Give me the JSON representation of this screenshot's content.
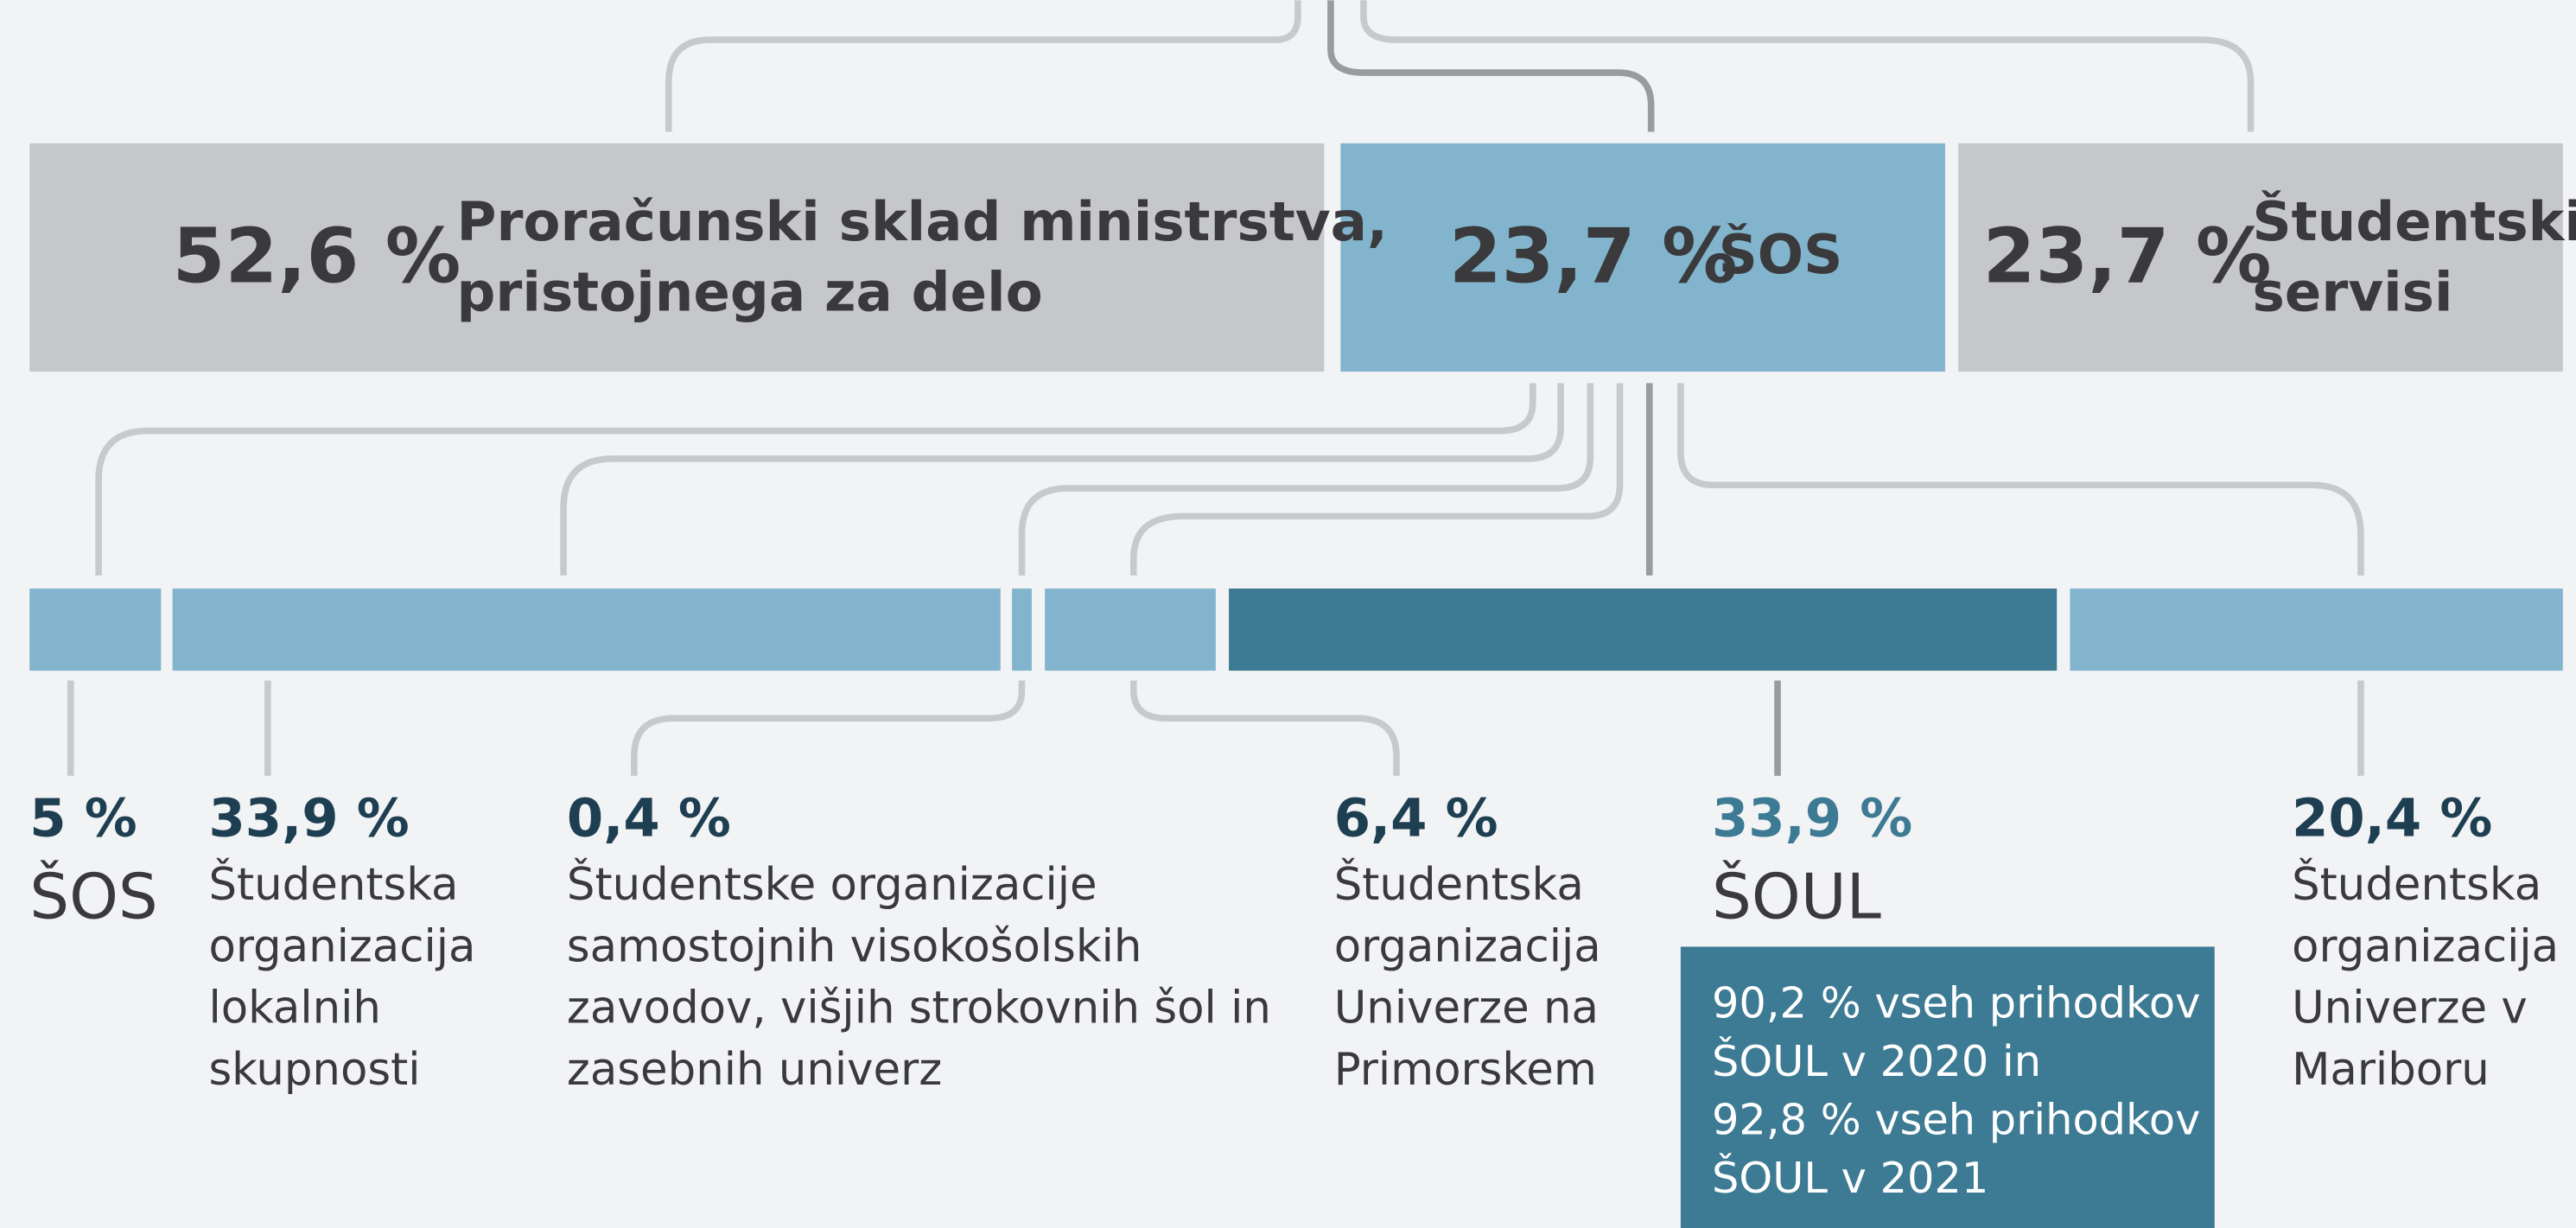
{
  "top_boxes": [
    {
      "percent": "52,6 %",
      "label_lines": [
        "Proračunski sklad ministrstva,",
        "pristojnega za delo"
      ]
    },
    {
      "percent": "23,7 %",
      "label_lines": [
        "ŠOS"
      ]
    },
    {
      "percent": "23,7 %",
      "label_lines": [
        "Študentski",
        "servisi"
      ]
    }
  ],
  "segments": [
    {
      "percent": "5 %",
      "label_lines": [
        "ŠOS"
      ]
    },
    {
      "percent": "33,9 %",
      "label_lines": [
        "Študentska",
        "organizacija",
        "lokalnih",
        "skupnosti"
      ]
    },
    {
      "percent": "0,4 %",
      "label_lines": [
        "Študentske organizacije",
        "samostojnih visokošolskih",
        "zavodov, višjih strokovnih šol in",
        "zasebnih univerz"
      ]
    },
    {
      "percent": "6,4 %",
      "label_lines": [
        "Študentska",
        "organizacija",
        "Univerze na",
        "Primorskem"
      ]
    },
    {
      "percent": "33,9 %",
      "label_lines": [
        "ŠOUL"
      ]
    },
    {
      "percent": "20,4 %",
      "label_lines": [
        "Študentska",
        "organizacija",
        "Univerze v",
        "Mariboru"
      ]
    }
  ],
  "note": {
    "lines": [
      "90,2 % vseh prihodkov",
      "ŠOUL v 2020 in",
      "92,8 % vseh prihodkov",
      "ŠOUL v 2021"
    ]
  }
}
